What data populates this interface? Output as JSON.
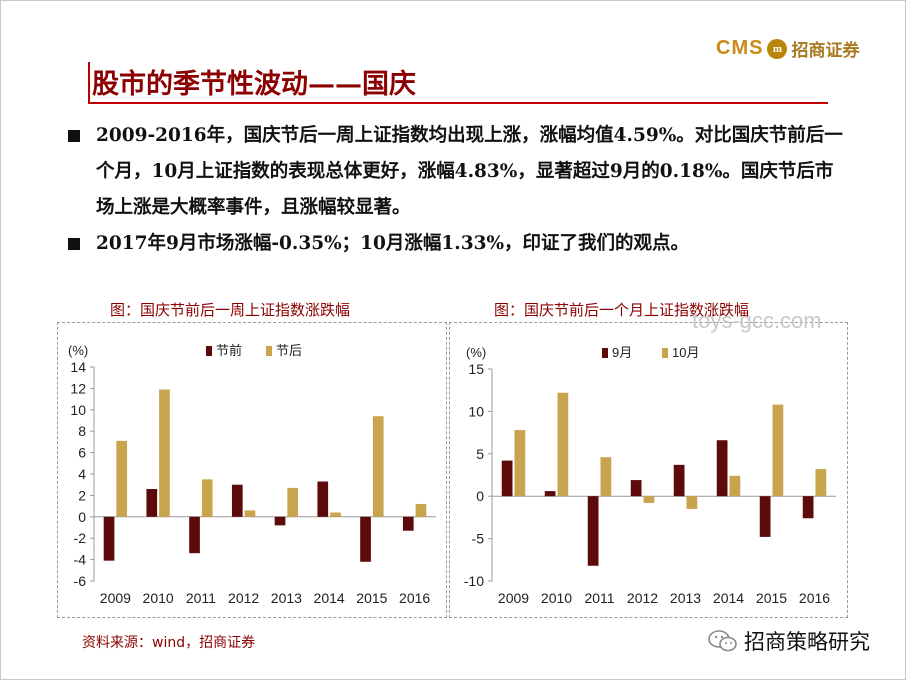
{
  "header": {
    "logo_cms": "CMS",
    "logo_badge": "m",
    "logo_brand": "招商证券",
    "title": "股市的季节性波动——国庆"
  },
  "bullets": [
    "2009-2016年，国庆节后一周上证指数均出现上涨，涨幅均值4.59%。对比国庆节前后一个月，10月上证指数的表现总体更好，涨幅4.83%，显著超过9月的0.18%。国庆节后市场上涨是大概率事件，且涨幅较显著。",
    "2017年9月市场涨幅-0.35%；10月涨幅1.33%，印证了我们的观点。"
  ],
  "watermark": "toys-gcc.com",
  "source": "资料来源：wind，招商证券",
  "wechat_name": "招商策略研究",
  "colors": {
    "dark": "#5c0a0a",
    "gold": "#c8a44e",
    "title_red": "#8b0000"
  },
  "chart_data": [
    {
      "type": "bar",
      "title": "图：国庆节前后一周上证指数涨跌幅",
      "ylabel": "(%)",
      "ylim": [
        -6,
        14
      ],
      "yticks": [
        -6,
        -4,
        -2,
        0,
        2,
        4,
        6,
        8,
        10,
        12,
        14
      ],
      "categories": [
        "2009",
        "2010",
        "2011",
        "2012",
        "2013",
        "2014",
        "2015",
        "2016"
      ],
      "series": [
        {
          "name": "节前",
          "color": "#5c0a0a",
          "values": [
            -4.1,
            2.6,
            -3.4,
            3.0,
            -0.8,
            3.3,
            -4.2,
            -1.3
          ]
        },
        {
          "name": "节后",
          "color": "#c8a44e",
          "values": [
            7.1,
            11.9,
            3.5,
            0.6,
            2.7,
            0.4,
            9.4,
            1.2
          ]
        }
      ],
      "legend": "top-center"
    },
    {
      "type": "bar",
      "title": "图：国庆节前后一个月上证指数涨跌幅",
      "ylabel": "(%)",
      "ylim": [
        -10,
        15
      ],
      "yticks": [
        -10,
        -5,
        0,
        5,
        10,
        15
      ],
      "categories": [
        "2009",
        "2010",
        "2011",
        "2012",
        "2013",
        "2014",
        "2015",
        "2016"
      ],
      "series": [
        {
          "name": "9月",
          "color": "#5c0a0a",
          "values": [
            4.2,
            0.6,
            -8.2,
            1.9,
            3.7,
            6.6,
            -4.8,
            -2.6
          ]
        },
        {
          "name": "10月",
          "color": "#c8a44e",
          "values": [
            7.8,
            12.2,
            4.6,
            -0.8,
            -1.5,
            2.4,
            10.8,
            3.2
          ]
        }
      ],
      "legend": "top-center"
    }
  ]
}
